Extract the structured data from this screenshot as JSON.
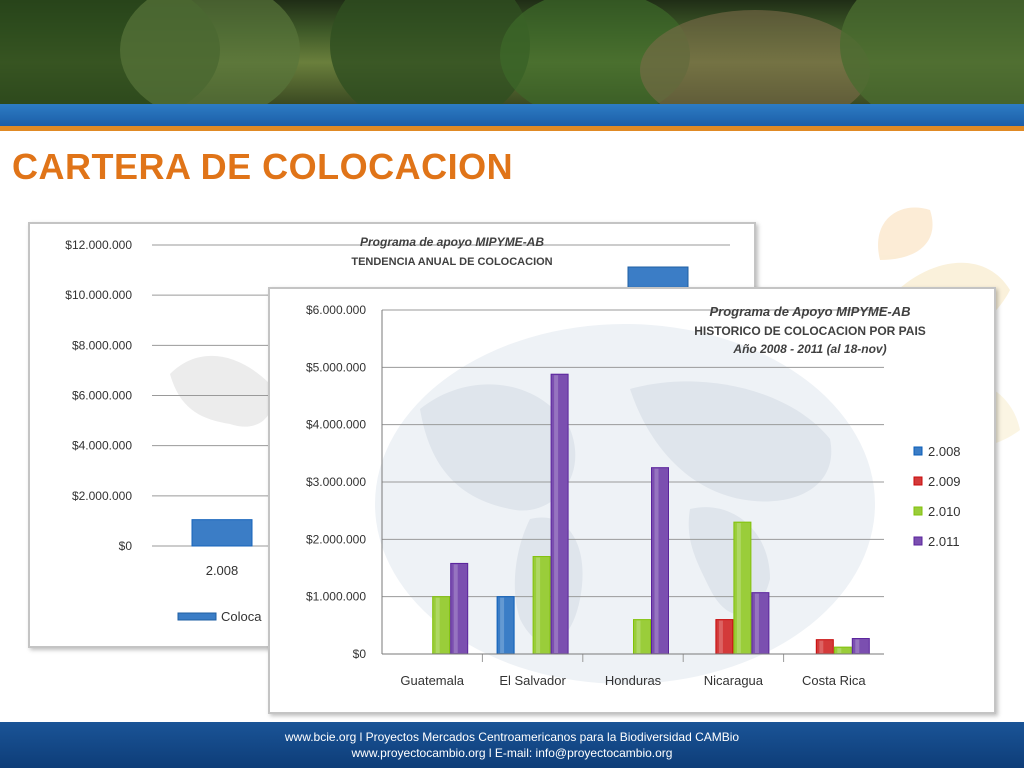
{
  "page": {
    "title": "CARTERA DE COLOCACION"
  },
  "footer": {
    "line1": "www.bcie.org l Proyectos Mercados Centroamericanos para la Biodiversidad CAMBio",
    "line2": "www.proyectocambio.org  l E-mail: info@proyectocambio.org"
  },
  "colors": {
    "title": "#e07418",
    "header_band": "#1f6bb5",
    "header_rule": "#e08a25",
    "footer": "#1a5497",
    "series": [
      "#3b7dc6",
      "#d33a3a",
      "#9acd3a",
      "#7b4fb0"
    ]
  },
  "chart_data": [
    {
      "type": "bar",
      "title": "Programa de apoyo MIPYME-AB",
      "subtitle": "TENDENCIA ANUAL DE COLOCACION",
      "categories": [
        "2.008"
      ],
      "series": [
        {
          "name": "Coloca",
          "values": [
            1050000
          ]
        }
      ],
      "ylim": [
        0,
        12000000
      ],
      "yticks": [
        "$0",
        "$2.000.000",
        "$4.000.000",
        "$6.000.000",
        "$8.000.000",
        "$10.000.000",
        "$12.000.000"
      ],
      "grid": true,
      "legend": "bottom"
    },
    {
      "type": "bar",
      "title": "Programa de Apoyo MIPYME-AB",
      "subtitle": "HISTORICO DE COLOCACION POR PAIS",
      "subtitle2": "Año 2008 - 2011 (al 18-nov)",
      "categories": [
        "Guatemala",
        "El Salvador",
        "Honduras",
        "Nicaragua",
        "Costa Rica"
      ],
      "series": [
        {
          "name": "2.008",
          "values": [
            0,
            1000000,
            0,
            0,
            0
          ]
        },
        {
          "name": "2.009",
          "values": [
            0,
            0,
            0,
            600000,
            250000
          ]
        },
        {
          "name": "2.010",
          "values": [
            1000000,
            1700000,
            600000,
            2300000,
            120000
          ]
        },
        {
          "name": "2.011",
          "values": [
            1580000,
            4880000,
            3250000,
            1070000,
            270000
          ]
        }
      ],
      "ylim": [
        0,
        6000000
      ],
      "yticks": [
        "$0",
        "$1.000.000",
        "$2.000.000",
        "$3.000.000",
        "$4.000.000",
        "$5.000.000",
        "$6.000.000"
      ],
      "grid": true,
      "legend": "right"
    }
  ]
}
